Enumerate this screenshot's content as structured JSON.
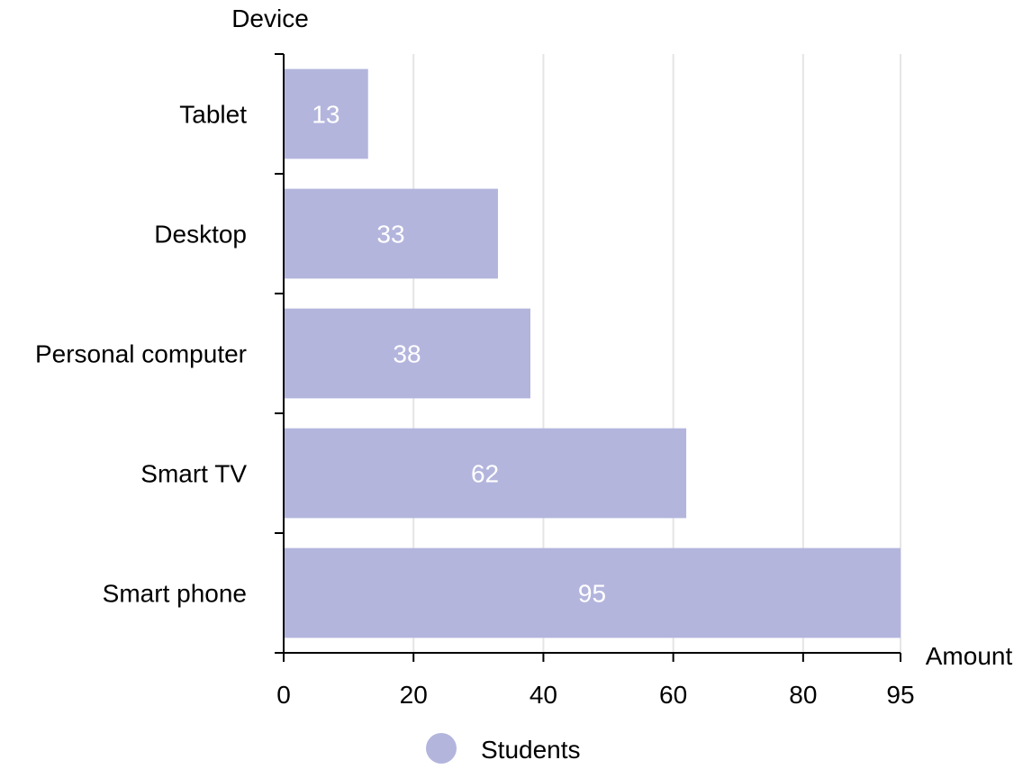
{
  "chart_data": {
    "type": "bar",
    "orientation": "horizontal",
    "ylabel": "Device",
    "xlabel": "Amount",
    "categories": [
      "Tablet",
      "Desktop",
      "Personal computer",
      "Smart TV",
      "Smart phone"
    ],
    "series": [
      {
        "name": "Students",
        "values": [
          13,
          33,
          38,
          62,
          95
        ]
      }
    ],
    "xlim": [
      0,
      95
    ],
    "x_ticks": [
      "0",
      "20",
      "40",
      "60",
      "80",
      "95"
    ],
    "data_labels": true,
    "grid": "vertical",
    "legend_position": "bottom-center",
    "colors": {
      "bar": "#b3b5dd",
      "bar_label": "#ffffff",
      "grid": "#e5e5e5",
      "axis": "#000000",
      "text": "#000000"
    }
  }
}
